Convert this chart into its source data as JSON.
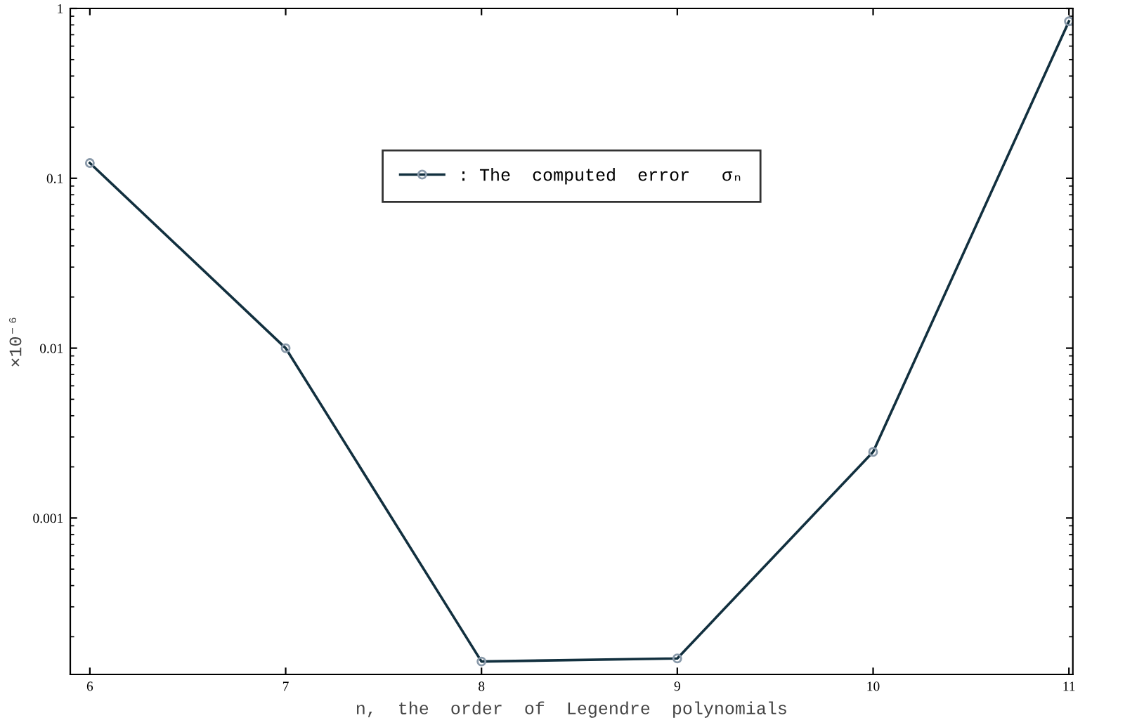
{
  "chart_data": {
    "type": "line",
    "xlabel": "n,  the  order  of  Legendre  polynomials",
    "ylabel": "×10⁻⁶",
    "x": [
      6,
      7,
      8,
      9,
      10,
      11
    ],
    "series": [
      {
        "name": ": The  computed  error   σₙ",
        "color": "#12303f",
        "values": [
          0.123,
          0.01,
          0.000143,
          0.000149,
          0.00245,
          0.84
        ]
      }
    ],
    "xlim": [
      5.9,
      11.02
    ],
    "ylim": [
      0.00012,
      1
    ],
    "xticks": [
      6,
      7,
      8,
      9,
      10,
      11
    ],
    "yticks": [
      0.001,
      0.01,
      0.1,
      1
    ],
    "log": "y",
    "grid": false,
    "legend": "top",
    "marker": "circle",
    "line_style": "solid"
  }
}
